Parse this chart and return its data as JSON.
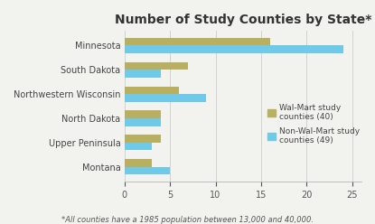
{
  "title": "Number of Study Counties by State*",
  "footnote": "*All counties have a 1985 population between 13,000 and 40,000.",
  "categories": [
    "Minnesota",
    "South Dakota",
    "Northwestern Wisconsin",
    "North Dakota",
    "Upper Peninsula",
    "Montana"
  ],
  "walmart_values": [
    16,
    7,
    6,
    4,
    4,
    3
  ],
  "non_walmart_values": [
    24,
    4,
    9,
    4,
    3,
    5
  ],
  "walmart_color": "#b8b060",
  "non_walmart_color": "#6ecae8",
  "walmart_label": "Wal-Mart study\ncounties (40)",
  "non_walmart_label": "Non-Wal-Mart study\ncounties (49)",
  "xlim": [
    0,
    26
  ],
  "xticks": [
    0,
    5,
    10,
    15,
    20,
    25
  ],
  "background_color": "#f2f2ee",
  "bar_height": 0.32,
  "title_fontsize": 10,
  "tick_fontsize": 7,
  "legend_fontsize": 6.5,
  "footnote_fontsize": 6
}
